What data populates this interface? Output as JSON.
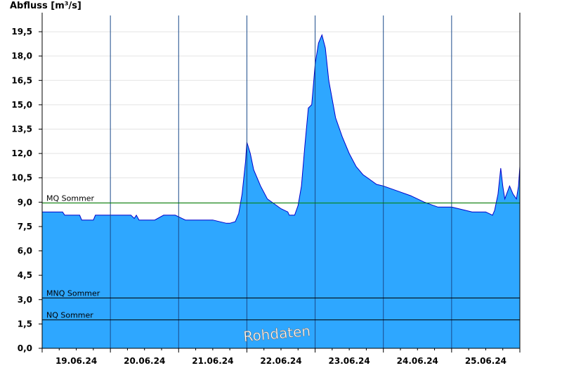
{
  "chart_data": {
    "type": "area",
    "ylabel": "Abfluss [m³/s]",
    "ylim": [
      0,
      20.5
    ],
    "yticks": [
      "0,0",
      "1,5",
      "3,0",
      "4,5",
      "6,0",
      "7,5",
      "9,0",
      "10,5",
      "12,0",
      "13,5",
      "15,0",
      "16,5",
      "18,0",
      "19,5"
    ],
    "xlim": [
      0,
      7
    ],
    "xticks": [
      "19.06.24",
      "20.06.24",
      "21.06.24",
      "22.06.24",
      "23.06.24",
      "24.06.24",
      "25.06.24"
    ],
    "reference_lines": [
      {
        "name": "MQ Sommer",
        "value": 8.95,
        "color": "#008000"
      },
      {
        "name": "MNQ Sommer",
        "value": 3.1,
        "color": "#000000"
      },
      {
        "name": "NQ Sommer",
        "value": 1.75,
        "color": "#000000"
      }
    ],
    "annotation": "Rohdaten",
    "fill_color": "#2ea7ff",
    "line_color": "#0000cc",
    "series": [
      {
        "x": [
          0,
          0.3,
          0.33,
          0.55,
          0.58,
          0.75,
          0.78,
          0.95,
          1.3,
          1.35,
          1.38,
          1.42,
          1.65,
          1.78,
          1.8,
          1.95,
          2.05,
          2.1,
          2.5,
          2.7,
          2.75,
          2.83,
          2.88,
          2.93,
          2.98,
          3.0,
          3.05,
          3.1,
          3.2,
          3.3,
          3.4,
          3.5,
          3.6,
          3.62,
          3.7,
          3.75,
          3.8,
          3.85,
          3.9,
          3.95,
          3.97,
          4.0,
          4.05,
          4.1,
          4.15,
          4.2,
          4.3,
          4.4,
          4.5,
          4.6,
          4.7,
          4.8,
          4.9,
          5.0,
          5.2,
          5.4,
          5.6,
          5.8,
          6.0,
          6.2,
          6.3,
          6.5,
          6.6,
          6.63,
          6.68,
          6.72,
          6.75,
          6.78,
          6.85,
          6.9,
          6.95,
          6.98,
          7.0
        ],
        "y": [
          8.4,
          8.4,
          8.2,
          8.2,
          7.9,
          7.9,
          8.2,
          8.2,
          8.2,
          8.0,
          8.2,
          7.9,
          7.9,
          8.2,
          8.2,
          8.2,
          8.0,
          7.9,
          7.9,
          7.7,
          7.7,
          7.8,
          8.3,
          9.5,
          11.5,
          12.7,
          12.0,
          11.0,
          10.0,
          9.2,
          8.9,
          8.6,
          8.4,
          8.2,
          8.2,
          8.8,
          10.0,
          12.5,
          14.8,
          15.0,
          16.0,
          17.5,
          18.8,
          19.3,
          18.5,
          16.5,
          14.2,
          13.0,
          12.0,
          11.2,
          10.7,
          10.4,
          10.1,
          10.0,
          9.7,
          9.4,
          9.0,
          8.7,
          8.7,
          8.5,
          8.4,
          8.4,
          8.2,
          8.5,
          9.5,
          11.1,
          10.0,
          9.2,
          10.0,
          9.5,
          9.2,
          10.0,
          11.2
        ]
      }
    ]
  }
}
